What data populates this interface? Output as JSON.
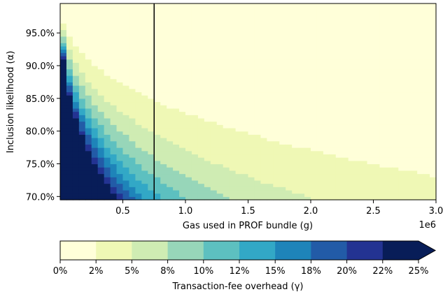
{
  "chart_data": {
    "type": "heatmap",
    "xlabel": "Gas used in PROF bundle (g)",
    "x_multiplier": "1e6",
    "ylabel": "Inclusion likelihood (α)",
    "colorbar_label": "Transaction-fee overhead (γ)",
    "xlim": [
      0,
      3000000
    ],
    "ylim": [
      0.695,
      0.995
    ],
    "x_ticks": [
      {
        "value": 500000,
        "label": "0.5"
      },
      {
        "value": 1000000,
        "label": "1.0"
      },
      {
        "value": 1500000,
        "label": "1.5"
      },
      {
        "value": 2000000,
        "label": "2.0"
      },
      {
        "value": 2500000,
        "label": "2.5"
      },
      {
        "value": 3000000,
        "label": "3.0"
      }
    ],
    "y_ticks": [
      {
        "value": 0.7,
        "label": "70.0%"
      },
      {
        "value": 0.75,
        "label": "75.0%"
      },
      {
        "value": 0.8,
        "label": "80.0%"
      },
      {
        "value": 0.85,
        "label": "85.0%"
      },
      {
        "value": 0.9,
        "label": "90.0%"
      },
      {
        "value": 0.95,
        "label": "95.0%"
      }
    ],
    "vertical_line_x": 750000,
    "colorbar": {
      "ticks": [
        "0%",
        "2%",
        "5%",
        "8%",
        "10%",
        "12%",
        "15%",
        "18%",
        "20%",
        "22%",
        "25%"
      ],
      "max_value": 0.25,
      "extend": "max",
      "colors": [
        "#ffffd9",
        "#eff8b5",
        "#cfecb3",
        "#97d6b9",
        "#5dc0c0",
        "#32a8c6",
        "#1e84b9",
        "#225ba7",
        "#233392",
        "#081d58"
      ]
    },
    "overhead_model": "gamma is approximately 1600 * (1 - alpha) * (1 - alpha) / g, colored by the bin it falls in; values above 25% use the darkest colour"
  }
}
